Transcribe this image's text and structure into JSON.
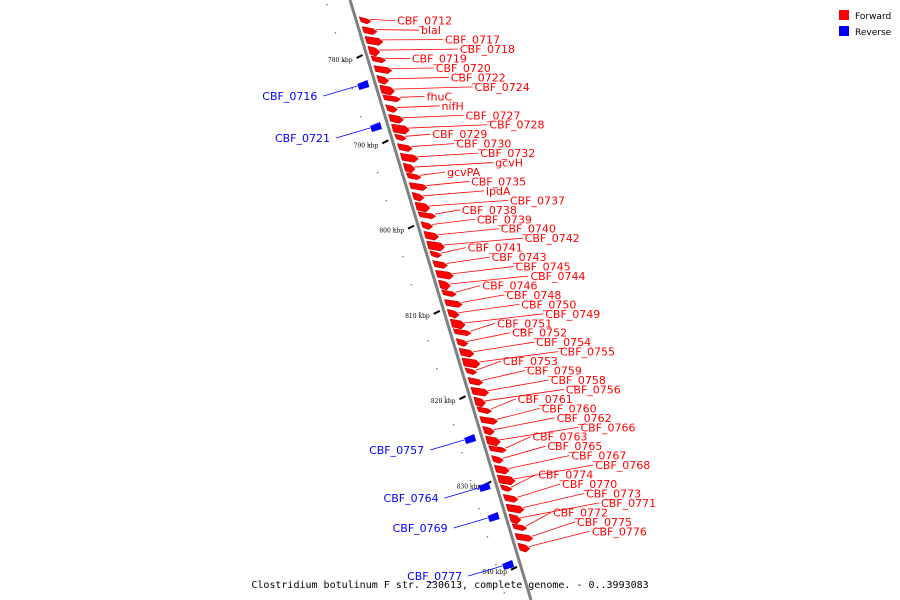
{
  "caption": "Clostridium botulinum F str. 230613, complete genome. - 0..3993083",
  "legend": [
    {
      "label": "Forward",
      "color": "#ff0000"
    },
    {
      "label": "Reverse",
      "color": "#0000ff"
    }
  ],
  "colors": {
    "forward": "#ff0000",
    "reverse": "#0000ff",
    "backbone": "#808080"
  },
  "axis": {
    "start_kbp": 775,
    "end_kbp": 845
  },
  "ticks": [
    {
      "kbp": 780,
      "label": "780 kbp"
    },
    {
      "kbp": 790,
      "label": "790 kbp"
    },
    {
      "kbp": 800,
      "label": "800 kbp"
    },
    {
      "kbp": 810,
      "label": "810 kbp"
    },
    {
      "kbp": 820,
      "label": "820 kbp"
    },
    {
      "kbp": 830,
      "label": "830 kbp"
    },
    {
      "kbp": 840,
      "label": "840 kbp"
    }
  ],
  "forward_genes": [
    "CBF_0712",
    "blaI",
    "CBF_0717",
    "CBF_0718",
    "CBF_0719",
    "CBF_0720",
    "CBF_0722",
    "CBF_0724",
    "fhuC",
    "nifH",
    "CBF_0727",
    "CBF_0728",
    "CBF_0729",
    "CBF_0730",
    "CBF_0732",
    "gcvH",
    "gcvPA",
    "CBF_0735",
    "lpdA",
    "CBF_0737",
    "CBF_0738",
    "CBF_0739",
    "CBF_0740",
    "CBF_0742",
    "CBF_0741",
    "CBF_0743",
    "CBF_0745",
    "CBF_0744",
    "CBF_0746",
    "CBF_0748",
    "CBF_0750",
    "CBF_0749",
    "CBF_0751",
    "CBF_0752",
    "CBF_0754",
    "CBF_0755",
    "CBF_0753",
    "CBF_0759",
    "CBF_0758",
    "CBF_0756",
    "CBF_0761",
    "CBF_0760",
    "CBF_0762",
    "CBF_0766",
    "CBF_0763",
    "CBF_0765",
    "CBF_0767",
    "CBF_0768",
    "CBF_0774",
    "CBF_0770",
    "CBF_0773",
    "CBF_0771",
    "CBF_0772",
    "CBF_0775",
    "CBF_0776"
  ],
  "reverse_genes": [
    "CBF_0716",
    "CBF_0721",
    "CBF_0757",
    "CBF_0764",
    "CBF_0769",
    "CBF_0777"
  ]
}
